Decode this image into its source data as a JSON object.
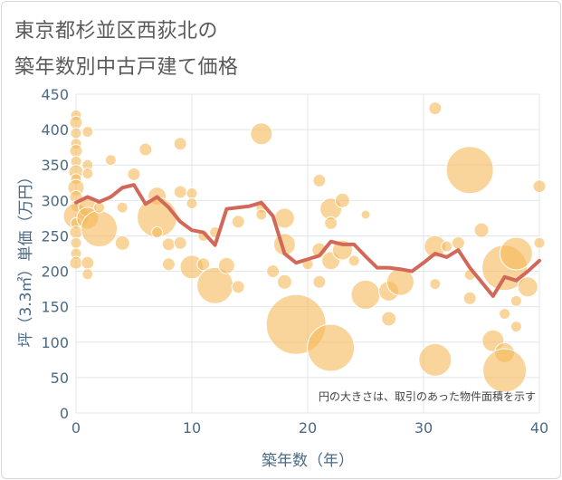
{
  "title_line1": "東京都杉並区西荻北の",
  "title_line2": "築年数別中古戸建て価格",
  "chart_data": {
    "type": "scatter",
    "xlabel": "築年数（年）",
    "ylabel": "坪（3.3㎡）単価（万円）",
    "xlim": [
      0,
      40
    ],
    "ylim": [
      0,
      450
    ],
    "x_ticks": [
      "0",
      "10",
      "20",
      "30",
      "40"
    ],
    "y_ticks": [
      "0",
      "50",
      "100",
      "150",
      "200",
      "250",
      "300",
      "350",
      "400",
      "450"
    ],
    "note": "円の大きさは、取引のあった物件面積を示す",
    "bubble_color": "#f5b95a",
    "line_color": "#d2685a",
    "grid": true,
    "bubbles": [
      {
        "x": 0,
        "y": 420,
        "s": 6
      },
      {
        "x": 0,
        "y": 410,
        "s": 7
      },
      {
        "x": 0,
        "y": 395,
        "s": 6
      },
      {
        "x": 0,
        "y": 380,
        "s": 6
      },
      {
        "x": 0,
        "y": 370,
        "s": 7
      },
      {
        "x": 0,
        "y": 355,
        "s": 6
      },
      {
        "x": 0,
        "y": 340,
        "s": 8
      },
      {
        "x": 0,
        "y": 330,
        "s": 6
      },
      {
        "x": 0,
        "y": 318,
        "s": 9
      },
      {
        "x": 0,
        "y": 305,
        "s": 7
      },
      {
        "x": 0,
        "y": 292,
        "s": 6
      },
      {
        "x": 0,
        "y": 278,
        "s": 14
      },
      {
        "x": 0,
        "y": 268,
        "s": 6
      },
      {
        "x": 0,
        "y": 255,
        "s": 7
      },
      {
        "x": 0,
        "y": 240,
        "s": 6
      },
      {
        "x": 0,
        "y": 225,
        "s": 6
      },
      {
        "x": 0,
        "y": 212,
        "s": 7
      },
      {
        "x": 1,
        "y": 397,
        "s": 6
      },
      {
        "x": 1,
        "y": 350,
        "s": 6
      },
      {
        "x": 1,
        "y": 338,
        "s": 6
      },
      {
        "x": 1,
        "y": 290,
        "s": 10
      },
      {
        "x": 1,
        "y": 275,
        "s": 12
      },
      {
        "x": 1,
        "y": 212,
        "s": 7
      },
      {
        "x": 1,
        "y": 196,
        "s": 6
      },
      {
        "x": 2,
        "y": 260,
        "s": 20
      },
      {
        "x": 2,
        "y": 290,
        "s": 6
      },
      {
        "x": 3,
        "y": 357,
        "s": 6
      },
      {
        "x": 4,
        "y": 290,
        "s": 6
      },
      {
        "x": 4,
        "y": 240,
        "s": 8
      },
      {
        "x": 5,
        "y": 337,
        "s": 7
      },
      {
        "x": 6,
        "y": 372,
        "s": 7
      },
      {
        "x": 7,
        "y": 306,
        "s": 10
      },
      {
        "x": 7,
        "y": 276,
        "s": 22
      },
      {
        "x": 7,
        "y": 255,
        "s": 6
      },
      {
        "x": 8,
        "y": 238,
        "s": 7
      },
      {
        "x": 8,
        "y": 210,
        "s": 7
      },
      {
        "x": 9,
        "y": 380,
        "s": 7
      },
      {
        "x": 9,
        "y": 312,
        "s": 7
      },
      {
        "x": 9,
        "y": 240,
        "s": 7
      },
      {
        "x": 10,
        "y": 310,
        "s": 6
      },
      {
        "x": 10,
        "y": 296,
        "s": 6
      },
      {
        "x": 10,
        "y": 206,
        "s": 13
      },
      {
        "x": 11,
        "y": 250,
        "s": 6
      },
      {
        "x": 11,
        "y": 210,
        "s": 7
      },
      {
        "x": 12,
        "y": 180,
        "s": 20
      },
      {
        "x": 12,
        "y": 255,
        "s": 6
      },
      {
        "x": 13,
        "y": 208,
        "s": 9
      },
      {
        "x": 14,
        "y": 270,
        "s": 7
      },
      {
        "x": 14,
        "y": 178,
        "s": 7
      },
      {
        "x": 16,
        "y": 394,
        "s": 12
      },
      {
        "x": 16,
        "y": 290,
        "s": 6
      },
      {
        "x": 16,
        "y": 280,
        "s": 6
      },
      {
        "x": 17,
        "y": 200,
        "s": 7
      },
      {
        "x": 18,
        "y": 275,
        "s": 11
      },
      {
        "x": 18,
        "y": 238,
        "s": 12
      },
      {
        "x": 18,
        "y": 185,
        "s": 8
      },
      {
        "x": 19,
        "y": 125,
        "s": 33
      },
      {
        "x": 20,
        "y": 210,
        "s": 6
      },
      {
        "x": 21,
        "y": 328,
        "s": 7
      },
      {
        "x": 21,
        "y": 230,
        "s": 8
      },
      {
        "x": 21,
        "y": 185,
        "s": 7
      },
      {
        "x": 22,
        "y": 288,
        "s": 12
      },
      {
        "x": 22,
        "y": 268,
        "s": 7
      },
      {
        "x": 22,
        "y": 215,
        "s": 10
      },
      {
        "x": 22,
        "y": 92,
        "s": 26
      },
      {
        "x": 23,
        "y": 300,
        "s": 8
      },
      {
        "x": 23,
        "y": 230,
        "s": 11
      },
      {
        "x": 24,
        "y": 215,
        "s": 6
      },
      {
        "x": 25,
        "y": 280,
        "s": 5
      },
      {
        "x": 25,
        "y": 167,
        "s": 16
      },
      {
        "x": 27,
        "y": 172,
        "s": 11
      },
      {
        "x": 27,
        "y": 133,
        "s": 8
      },
      {
        "x": 28,
        "y": 185,
        "s": 15
      },
      {
        "x": 31,
        "y": 430,
        "s": 7
      },
      {
        "x": 31,
        "y": 235,
        "s": 12
      },
      {
        "x": 31,
        "y": 182,
        "s": 6
      },
      {
        "x": 31,
        "y": 75,
        "s": 18
      },
      {
        "x": 32,
        "y": 235,
        "s": 6
      },
      {
        "x": 33,
        "y": 240,
        "s": 7
      },
      {
        "x": 34,
        "y": 343,
        "s": 26
      },
      {
        "x": 34,
        "y": 195,
        "s": 6
      },
      {
        "x": 34,
        "y": 162,
        "s": 7
      },
      {
        "x": 35,
        "y": 258,
        "s": 8
      },
      {
        "x": 36,
        "y": 102,
        "s": 12
      },
      {
        "x": 37,
        "y": 205,
        "s": 25
      },
      {
        "x": 37,
        "y": 140,
        "s": 6
      },
      {
        "x": 37,
        "y": 85,
        "s": 11
      },
      {
        "x": 37,
        "y": 60,
        "s": 24
      },
      {
        "x": 38,
        "y": 225,
        "s": 18
      },
      {
        "x": 38,
        "y": 158,
        "s": 6
      },
      {
        "x": 38,
        "y": 122,
        "s": 6
      },
      {
        "x": 39,
        "y": 178,
        "s": 11
      },
      {
        "x": 40,
        "y": 320,
        "s": 7
      },
      {
        "x": 40,
        "y": 240,
        "s": 6
      }
    ],
    "line": {
      "x": [
        0,
        1,
        2,
        3,
        4,
        5,
        6,
        7,
        8,
        9,
        10,
        11,
        12,
        13,
        14,
        15,
        16,
        17,
        18,
        19,
        20,
        21,
        22,
        23,
        24,
        25,
        26,
        27,
        28,
        29,
        30,
        31,
        32,
        33,
        34,
        35,
        36,
        37,
        38,
        39,
        40
      ],
      "y": [
        297,
        305,
        298,
        305,
        318,
        322,
        295,
        305,
        290,
        270,
        258,
        255,
        237,
        288,
        290,
        292,
        297,
        278,
        225,
        212,
        217,
        222,
        242,
        238,
        238,
        221,
        205,
        205,
        203,
        200,
        212,
        225,
        220,
        230,
        205,
        185,
        165,
        192,
        187,
        200,
        215
      ]
    }
  }
}
